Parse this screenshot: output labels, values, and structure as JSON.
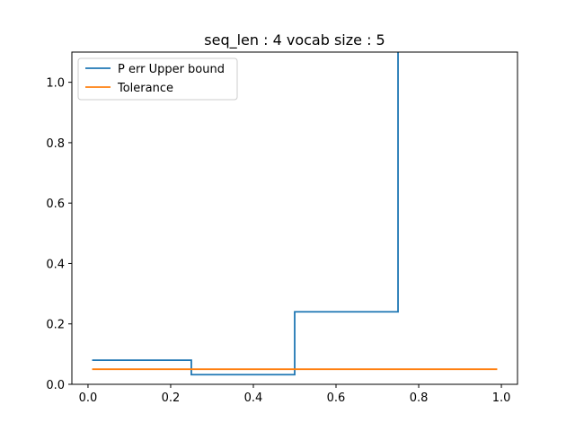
{
  "chart_data": {
    "type": "line",
    "title": "seq_len : 4 vocab size : 5",
    "xlabel": "",
    "ylabel": "",
    "xlim": [
      -0.039,
      1.039
    ],
    "ylim": [
      0,
      1.1
    ],
    "xticks": [
      0.0,
      0.2,
      0.4,
      0.6,
      0.8,
      1.0
    ],
    "yticks": [
      0.0,
      0.2,
      0.4,
      0.6,
      0.8,
      1.0
    ],
    "xtick_labels": [
      "0.0",
      "0.2",
      "0.4",
      "0.6",
      "0.8",
      "1.0"
    ],
    "ytick_labels": [
      "0.0",
      "0.2",
      "0.4",
      "0.6",
      "0.8",
      "1.0"
    ],
    "grid": false,
    "legend_position": "upper-left",
    "series": [
      {
        "name": "P err Upper bound",
        "color": "#1f77b4",
        "x": [
          0.01,
          0.25,
          0.25,
          0.5,
          0.5,
          0.75,
          0.75
        ],
        "y": [
          0.08,
          0.08,
          0.032,
          0.032,
          0.24,
          0.24,
          1.6
        ]
      },
      {
        "name": "Tolerance",
        "color": "#ff7f0e",
        "x": [
          0.01,
          0.99
        ],
        "y": [
          0.05,
          0.05
        ]
      }
    ]
  }
}
